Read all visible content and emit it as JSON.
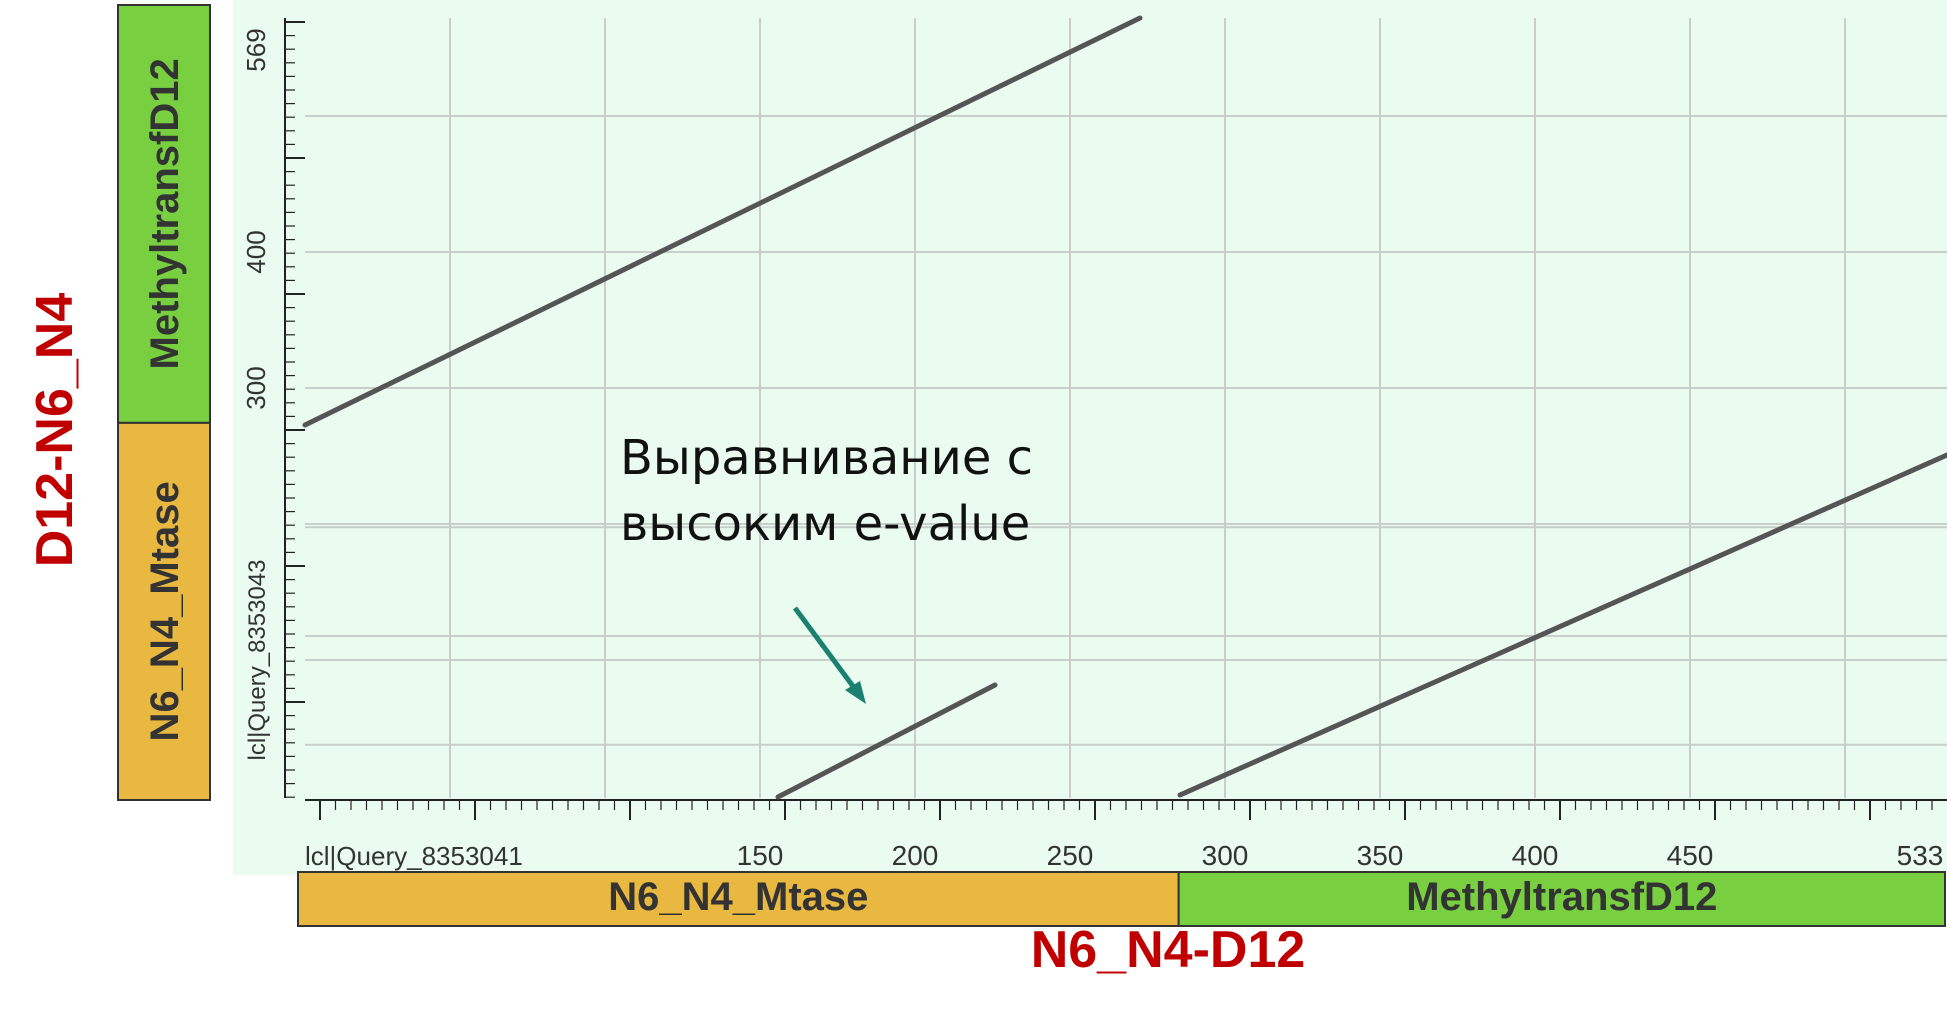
{
  "chart_data": {
    "type": "scatter",
    "subtype": "dot-plot",
    "x_axis": {
      "label": "lcl|Query_8353041",
      "ticks": [
        150,
        200,
        250,
        300,
        350,
        400,
        450,
        533
      ],
      "range": [
        0,
        533
      ]
    },
    "y_axis": {
      "label": "lcl|Query_8353043",
      "ticks": [
        300,
        400,
        569
      ],
      "range": [
        0,
        569
      ]
    },
    "x_title": "N6_N4-D12",
    "y_title": "D12-N6_N4",
    "x_domains": [
      {
        "name": "N6_N4_Mtase",
        "start": 0,
        "end": 285,
        "color": "#e8b840"
      },
      {
        "name": "MethyltransfD12",
        "start": 285,
        "end": 533,
        "color": "#78d040"
      }
    ],
    "y_domains": [
      {
        "name": "N6_N4_Mtase",
        "start": 0,
        "end": 270,
        "color": "#e8b840"
      },
      {
        "name": "MethyltransfD12",
        "start": 270,
        "end": 569,
        "color": "#78d040"
      }
    ],
    "series": [
      {
        "points": [
          [
            0,
            273
          ],
          [
            275,
            569
          ]
        ]
      },
      {
        "points": [
          [
            155,
            0
          ],
          [
            225,
            82
          ]
        ]
      },
      {
        "points": [
          [
            285,
            0
          ],
          [
            533,
            250
          ]
        ]
      }
    ],
    "annotation": {
      "lines": [
        "Выравнивание с",
        "высоким e-value"
      ],
      "arrow_target": [
        185,
        70
      ],
      "arrow_color": "#1a8070"
    },
    "grid": true,
    "background": "#eafbf0"
  }
}
